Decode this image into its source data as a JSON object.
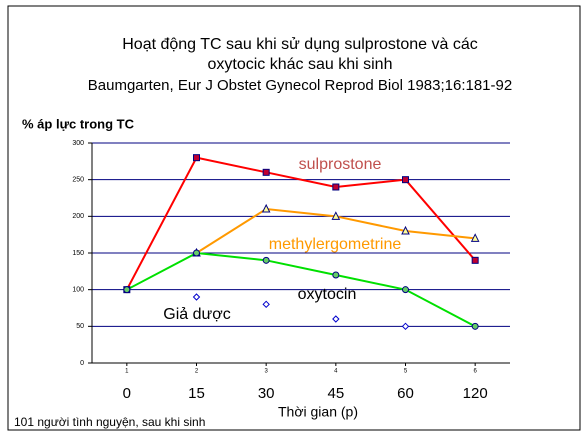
{
  "chart_data": {
    "type": "line",
    "title": [
      "Hoạt động TC sau khi sử dụng sulprostone và các",
      "oxytocic khác sau khi sinh"
    ],
    "subtitle": "Baumgarten, Eur J Obstet Gynecol Reprod Biol 1983;16:181-92",
    "y_label": "% áp lực trong TC",
    "x_label": "Thời gian (p)",
    "footnote": "101 người tình nguyện, sau khi sinh",
    "categories": [
      "0",
      "15",
      "30",
      "45",
      "60",
      "120"
    ],
    "xticks": [
      1,
      2,
      3,
      4,
      5,
      6
    ],
    "xlim": [
      0.5,
      6.5
    ],
    "ylim": [
      0,
      300
    ],
    "yticks": [
      0,
      50,
      100,
      150,
      200,
      250,
      300
    ],
    "grid": true,
    "series": [
      {
        "name": "sulprostone",
        "color": "#ff0000",
        "marker_fill": "#c00030",
        "label_color": "#c0504d",
        "marker": "square",
        "line": true,
        "values": [
          100,
          280,
          260,
          240,
          250,
          140
        ]
      },
      {
        "name": "methylergometrine",
        "color": "#ff9900",
        "marker_fill": "#ffff99",
        "label_color": "#ff9900",
        "marker": "triangle",
        "line": true,
        "values": [
          null,
          150,
          210,
          200,
          180,
          170
        ]
      },
      {
        "name": "oxytocin",
        "color": "#00e000",
        "marker_fill": "#66cc66",
        "label_color": "#000000",
        "marker": "circle",
        "line": true,
        "values": [
          100,
          150,
          140,
          120,
          100,
          50
        ]
      },
      {
        "name": "Giả dược",
        "color": "#0000cc",
        "marker_fill": "#ffffff",
        "label_color": "#000000",
        "marker": "diamond",
        "line": false,
        "values": [
          null,
          90,
          80,
          60,
          50,
          null
        ]
      }
    ]
  }
}
